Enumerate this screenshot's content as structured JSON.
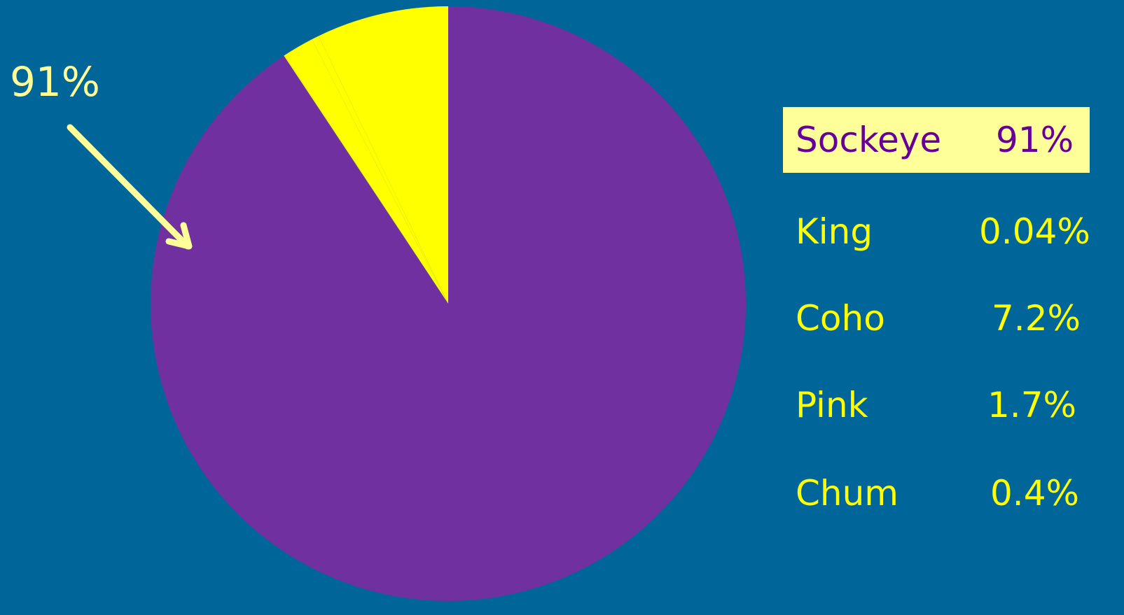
{
  "chart_data": {
    "type": "pie",
    "slices": [
      {
        "label": "Sockeye",
        "value": 91,
        "display": "91%",
        "color": "#7030a0",
        "highlight": true
      },
      {
        "label": "King",
        "value": 0.04,
        "display": "0.04%",
        "color": "#ffff00",
        "highlight": false
      },
      {
        "label": "Coho",
        "value": 7.2,
        "display": "7.2%",
        "color": "#ffff00",
        "highlight": false
      },
      {
        "label": "Pink",
        "value": 1.7,
        "display": "1.7%",
        "color": "#ffff00",
        "highlight": false
      },
      {
        "label": "Chum",
        "value": 0.4,
        "display": "0.4%",
        "color": "#ffff00",
        "highlight": false
      }
    ],
    "callout": {
      "text": "91%",
      "points_to": "Sockeye"
    },
    "legend_position": "right"
  },
  "colors": {
    "background": "#006699",
    "sockeye": "#7030a0",
    "other": "#ffff00",
    "legend_highlight_bg": "#ffff99",
    "legend_highlight_text": "#660099",
    "legend_text": "#ffff00",
    "callout": "#ffff99"
  }
}
